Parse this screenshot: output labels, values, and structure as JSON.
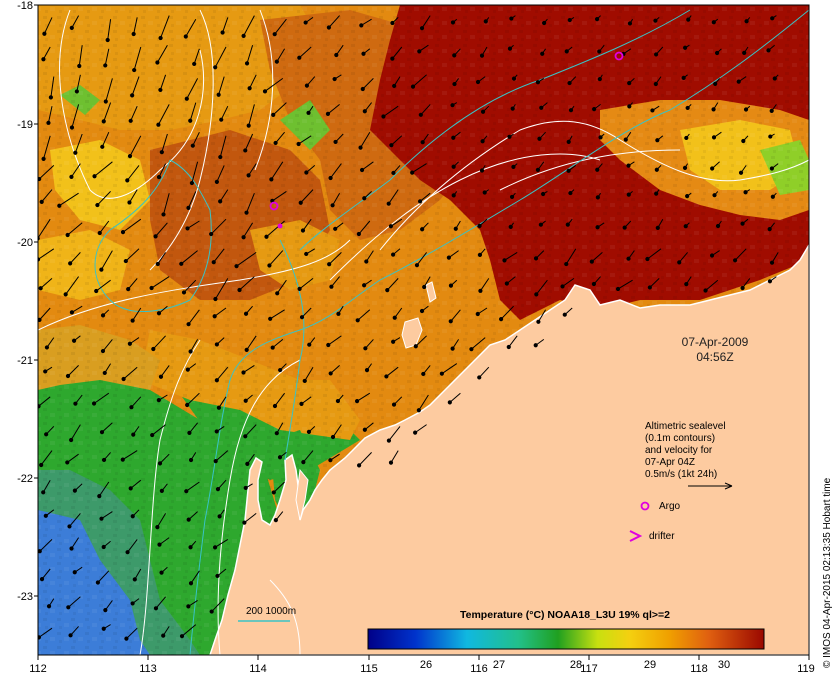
{
  "map": {
    "lon_ticks": [
      "112",
      "113",
      "114",
      "115",
      "116",
      "117",
      "118",
      "119"
    ],
    "lat_ticks": [
      "-18",
      "-19",
      "-20",
      "-21",
      "-22",
      "-23"
    ],
    "colors": {
      "land": "#fdcba0",
      "sst_hot": "#a00c00",
      "sst_warm": "#d4540c",
      "sst_mid": "#e69a12",
      "sst_yellow": "#f2c11a",
      "sst_green": "#2ea82e",
      "sst_cool": "#3c7dd8",
      "contour": "#ffffff",
      "bathy": "#39c3c6",
      "argo": "#e000e0"
    }
  },
  "timestamp": {
    "date": "07-Apr-2009",
    "time": "04:56Z"
  },
  "legend": {
    "line1": "Altimetric sealevel",
    "line2": "(0.1m contours)",
    "line3": "and velocity for",
    "line4": "07-Apr 04Z",
    "line5": "0.5m/s (1kt 24h)",
    "argo_label": "Argo",
    "drifter_label": "drifter",
    "bathy_label": "200  1000m"
  },
  "colorbar": {
    "title": "Temperature (°C) NOAA18_L3U 19% ql>=2",
    "ticks": [
      "26",
      "27",
      "28",
      "29",
      "30"
    ]
  },
  "credit": "© IMOS 04-Apr-2015 02:13:35 Hobart time"
}
